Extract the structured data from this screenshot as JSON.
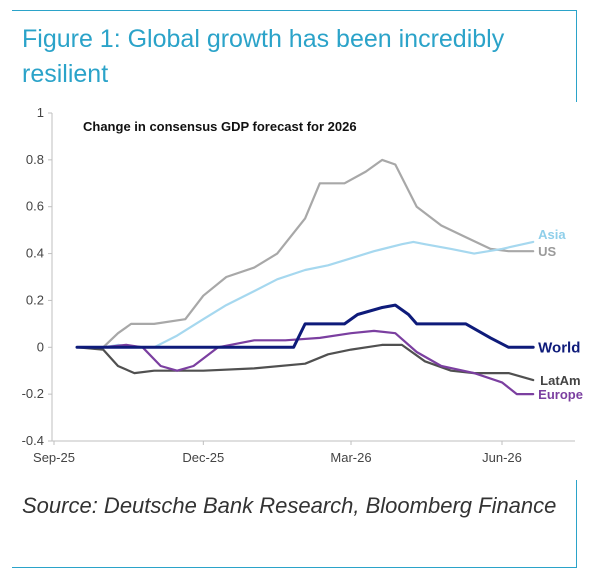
{
  "figure": {
    "title": "Figure 1: Global growth has been incredibly resilient",
    "source": "Source: Deutsche Bank Research, Bloomberg Finance"
  },
  "chart_data": {
    "type": "line",
    "title": "Change in consensus GDP forecast for 2026",
    "xlabel": "",
    "ylabel": "",
    "x_range": [
      "2025-09",
      "2026-06"
    ],
    "x_ticks": [
      {
        "x": "2025-09",
        "label": "Sep-25"
      },
      {
        "x": "2025-12",
        "label": "Dec-25"
      },
      {
        "x": "2026-03",
        "label": "Mar-26"
      },
      {
        "x": "2026-06",
        "label": "Jun-26"
      }
    ],
    "ylim": [
      -0.4,
      1.0
    ],
    "y_ticks": [
      -0.4,
      -0.2,
      0,
      0.2,
      0.4,
      0.6,
      0.8,
      1
    ],
    "grid": false,
    "series": [
      {
        "name": "Asia",
        "color": "#a6d8ef",
        "label_color": "#8fcfea",
        "points": [
          [
            "2025-09-15",
            0
          ],
          [
            "2025-10-01",
            0
          ],
          [
            "2025-10-10",
            0.01
          ],
          [
            "2025-10-20",
            0
          ],
          [
            "2025-11-01",
            0
          ],
          [
            "2025-11-15",
            0.05
          ],
          [
            "2025-12-01",
            0.12
          ],
          [
            "2025-12-15",
            0.18
          ],
          [
            "2026-01-01",
            0.24
          ],
          [
            "2026-01-15",
            0.29
          ],
          [
            "2026-02-01",
            0.33
          ],
          [
            "2026-02-15",
            0.35
          ],
          [
            "2026-03-01",
            0.38
          ],
          [
            "2026-03-15",
            0.41
          ],
          [
            "2026-04-01",
            0.44
          ],
          [
            "2026-04-08",
            0.45
          ],
          [
            "2026-04-15",
            0.44
          ],
          [
            "2026-05-01",
            0.42
          ],
          [
            "2026-05-15",
            0.4
          ],
          [
            "2026-06-01",
            0.42
          ],
          [
            "2026-06-20",
            0.45
          ]
        ]
      },
      {
        "name": "US",
        "color": "#a8a8a8",
        "label_color": "#9a9a9a",
        "points": [
          [
            "2025-09-15",
            0
          ],
          [
            "2025-10-01",
            0
          ],
          [
            "2025-10-10",
            0.06
          ],
          [
            "2025-10-18",
            0.1
          ],
          [
            "2025-11-01",
            0.1
          ],
          [
            "2025-11-20",
            0.12
          ],
          [
            "2025-12-01",
            0.22
          ],
          [
            "2025-12-15",
            0.3
          ],
          [
            "2026-01-01",
            0.34
          ],
          [
            "2026-01-15",
            0.4
          ],
          [
            "2026-02-01",
            0.55
          ],
          [
            "2026-02-10",
            0.7
          ],
          [
            "2026-02-25",
            0.7
          ],
          [
            "2026-03-10",
            0.75
          ],
          [
            "2026-03-20",
            0.8
          ],
          [
            "2026-03-28",
            0.78
          ],
          [
            "2026-04-10",
            0.6
          ],
          [
            "2026-04-25",
            0.52
          ],
          [
            "2026-05-10",
            0.47
          ],
          [
            "2026-05-25",
            0.42
          ],
          [
            "2026-06-05",
            0.41
          ],
          [
            "2026-06-20",
            0.41
          ]
        ]
      },
      {
        "name": "World",
        "color": "#0e1b7a",
        "label_color": "#0e1b7a",
        "points": [
          [
            "2025-09-15",
            0
          ],
          [
            "2025-12-01",
            0
          ],
          [
            "2026-01-15",
            0
          ],
          [
            "2026-01-25",
            0
          ],
          [
            "2026-02-01",
            0.1
          ],
          [
            "2026-02-25",
            0.1
          ],
          [
            "2026-03-05",
            0.14
          ],
          [
            "2026-03-20",
            0.17
          ],
          [
            "2026-03-28",
            0.18
          ],
          [
            "2026-04-05",
            0.14
          ],
          [
            "2026-04-10",
            0.1
          ],
          [
            "2026-05-10",
            0.1
          ],
          [
            "2026-05-25",
            0.04
          ],
          [
            "2026-06-05",
            0
          ],
          [
            "2026-06-20",
            0
          ]
        ]
      },
      {
        "name": "LatAm",
        "color": "#505050",
        "label_color": "#444444",
        "points": [
          [
            "2025-09-15",
            0
          ],
          [
            "2025-10-01",
            -0.01
          ],
          [
            "2025-10-10",
            -0.08
          ],
          [
            "2025-10-20",
            -0.11
          ],
          [
            "2025-11-01",
            -0.1
          ],
          [
            "2025-12-01",
            -0.1
          ],
          [
            "2026-01-01",
            -0.09
          ],
          [
            "2026-02-01",
            -0.07
          ],
          [
            "2026-02-15",
            -0.03
          ],
          [
            "2026-03-01",
            -0.01
          ],
          [
            "2026-03-20",
            0.01
          ],
          [
            "2026-04-01",
            0.01
          ],
          [
            "2026-04-15",
            -0.06
          ],
          [
            "2026-05-01",
            -0.1
          ],
          [
            "2026-05-15",
            -0.11
          ],
          [
            "2026-06-05",
            -0.11
          ],
          [
            "2026-06-20",
            -0.14
          ]
        ]
      },
      {
        "name": "Europe",
        "color": "#7b3fa0",
        "label_color": "#7b3fa0",
        "points": [
          [
            "2025-09-15",
            0
          ],
          [
            "2025-10-01",
            0
          ],
          [
            "2025-10-15",
            0.01
          ],
          [
            "2025-10-25",
            0
          ],
          [
            "2025-11-05",
            -0.08
          ],
          [
            "2025-11-15",
            -0.1
          ],
          [
            "2025-11-25",
            -0.08
          ],
          [
            "2025-12-10",
            0
          ],
          [
            "2026-01-01",
            0.03
          ],
          [
            "2026-01-20",
            0.03
          ],
          [
            "2026-02-10",
            0.04
          ],
          [
            "2026-03-01",
            0.06
          ],
          [
            "2026-03-15",
            0.07
          ],
          [
            "2026-03-28",
            0.06
          ],
          [
            "2026-04-10",
            -0.02
          ],
          [
            "2026-04-25",
            -0.08
          ],
          [
            "2026-05-15",
            -0.11
          ],
          [
            "2026-06-01",
            -0.15
          ],
          [
            "2026-06-10",
            -0.2
          ],
          [
            "2026-06-20",
            -0.2
          ]
        ]
      }
    ]
  }
}
